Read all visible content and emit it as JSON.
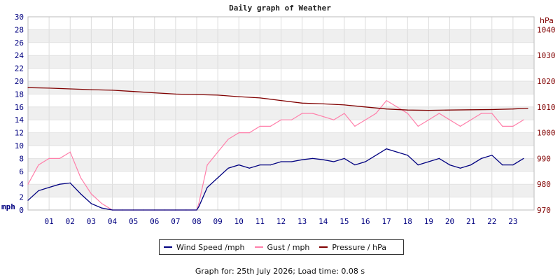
{
  "chart_data": {
    "type": "line",
    "title": "Daily graph of Weather",
    "footer": "Graph for: 25th July 2026; Load time: 0.08 s",
    "left_axis": {
      "label": "mph",
      "min": 0,
      "max": 30,
      "step": 2,
      "color": "#000080"
    },
    "right_axis": {
      "label": "hPa",
      "min": 970,
      "max": 1045,
      "step": 10,
      "color": "#800000"
    },
    "x_ticks": [
      "01",
      "02",
      "03",
      "04",
      "05",
      "06",
      "07",
      "08",
      "09",
      "10",
      "11",
      "12",
      "13",
      "14",
      "15",
      "16",
      "17",
      "18",
      "19",
      "20",
      "21",
      "22",
      "23"
    ],
    "x_range": [
      0,
      24
    ],
    "grid": true,
    "legend": [
      "Wind Speed /mph",
      "Gust / mph",
      "Pressure / hPa"
    ],
    "series": [
      {
        "name": "Wind Speed /mph",
        "axis": "left",
        "color": "#000080",
        "x": [
          0,
          0.5,
          1,
          1.5,
          2,
          2.5,
          3,
          3.5,
          4,
          4.5,
          5,
          5.5,
          6,
          6.5,
          7,
          7.5,
          8,
          8.1,
          8.5,
          9,
          9.5,
          10,
          10.5,
          11,
          11.5,
          12,
          12.5,
          13,
          13.5,
          14,
          14.5,
          15,
          15.5,
          16,
          16.5,
          17,
          17.5,
          18,
          18.5,
          19,
          19.5,
          20,
          20.5,
          21,
          21.5,
          22,
          22.5,
          23,
          23.5
        ],
        "y": [
          1.5,
          3,
          3.5,
          4,
          4.2,
          2.5,
          1,
          0.3,
          0,
          0,
          0,
          0,
          0,
          0,
          0,
          0,
          0,
          0.5,
          3.5,
          5,
          6.5,
          7,
          6.5,
          7,
          7,
          7.5,
          7.5,
          7.8,
          8,
          7.8,
          7.5,
          8,
          7,
          7.5,
          8.5,
          9.5,
          9,
          8.5,
          7,
          7.5,
          8,
          7,
          6.5,
          7,
          8,
          8.5,
          7,
          7,
          8
        ]
      },
      {
        "name": "Gust / mph",
        "axis": "left",
        "color": "#ff7faa",
        "x": [
          0,
          0.5,
          1,
          1.5,
          2,
          2.5,
          3,
          3.5,
          4,
          4.5,
          5,
          5.5,
          6,
          6.5,
          7,
          7.5,
          8,
          8.1,
          8.5,
          9,
          9.5,
          10,
          10.5,
          11,
          11.5,
          12,
          12.5,
          13,
          13.5,
          14,
          14.5,
          15,
          15.5,
          16,
          16.5,
          17,
          17.5,
          18,
          18.5,
          19,
          19.5,
          20,
          20.5,
          21,
          21.5,
          22,
          22.5,
          23,
          23.5
        ],
        "y": [
          4,
          7,
          8,
          8,
          9,
          5,
          2.5,
          1,
          0,
          0,
          0,
          0,
          0,
          0,
          0,
          0,
          0,
          1,
          7,
          9,
          11,
          12,
          12,
          13,
          13,
          14,
          14,
          15,
          15,
          14.5,
          14,
          15,
          13,
          14,
          15,
          17,
          16,
          15,
          13,
          14,
          15,
          14,
          13,
          14,
          15,
          15,
          13,
          13,
          14
        ]
      },
      {
        "name": "Pressure / hPa",
        "axis": "right",
        "color": "#800000",
        "x": [
          0,
          1,
          2,
          3,
          4,
          5,
          6,
          7,
          8,
          9,
          10,
          11,
          12,
          13,
          14,
          15,
          16,
          17,
          18,
          19,
          20,
          21,
          22,
          23,
          23.7
        ],
        "y": [
          1017.5,
          1017.3,
          1017,
          1016.7,
          1016.5,
          1016,
          1015.5,
          1015,
          1014.8,
          1014.6,
          1014,
          1013.5,
          1012.5,
          1011.5,
          1011.2,
          1010.8,
          1010,
          1009.2,
          1008.8,
          1008.7,
          1008.8,
          1008.9,
          1009,
          1009.2,
          1009.5
        ]
      }
    ]
  }
}
